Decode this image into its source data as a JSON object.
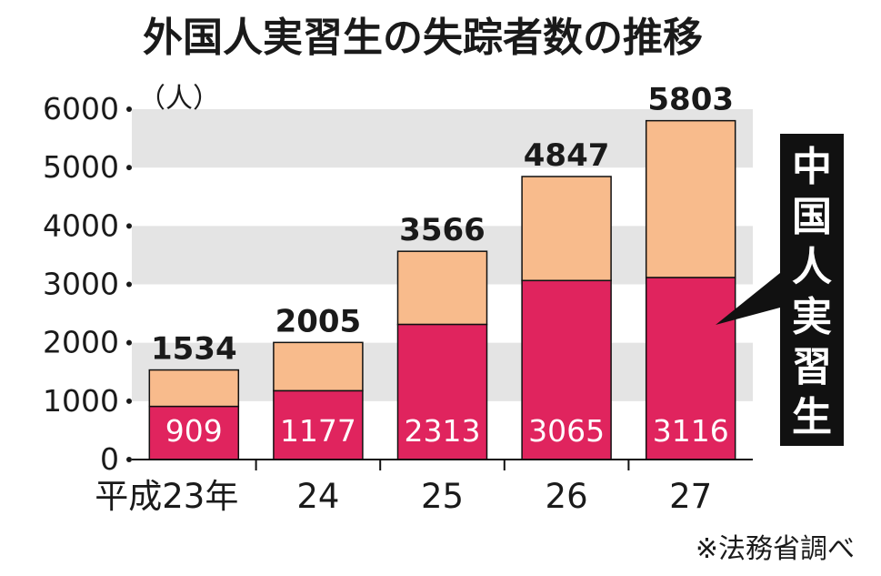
{
  "colors": {
    "chinese": "#e0245e",
    "other": "#f8bb8c",
    "band": "#e4e4e4",
    "text": "#1a1a1a",
    "callout_bg": "#111111"
  },
  "chart_data": {
    "type": "bar",
    "stacked": true,
    "title": "外国人実習生の失踪者数の推移",
    "unit_label": "（人）",
    "categories": [
      "平成23年",
      "24",
      "25",
      "26",
      "27"
    ],
    "series": [
      {
        "name": "中国人実習生",
        "values": [
          909,
          1177,
          2313,
          3065,
          3116
        ]
      }
    ],
    "totals": [
      1534,
      2005,
      3566,
      4847,
      5803
    ],
    "ylim": [
      0,
      6000
    ],
    "yticks": [
      0,
      1000,
      2000,
      3000,
      4000,
      5000,
      6000
    ],
    "grid": "alternating horizontal bands",
    "callout": "中国人実習生",
    "source": "※法務省調べ"
  }
}
